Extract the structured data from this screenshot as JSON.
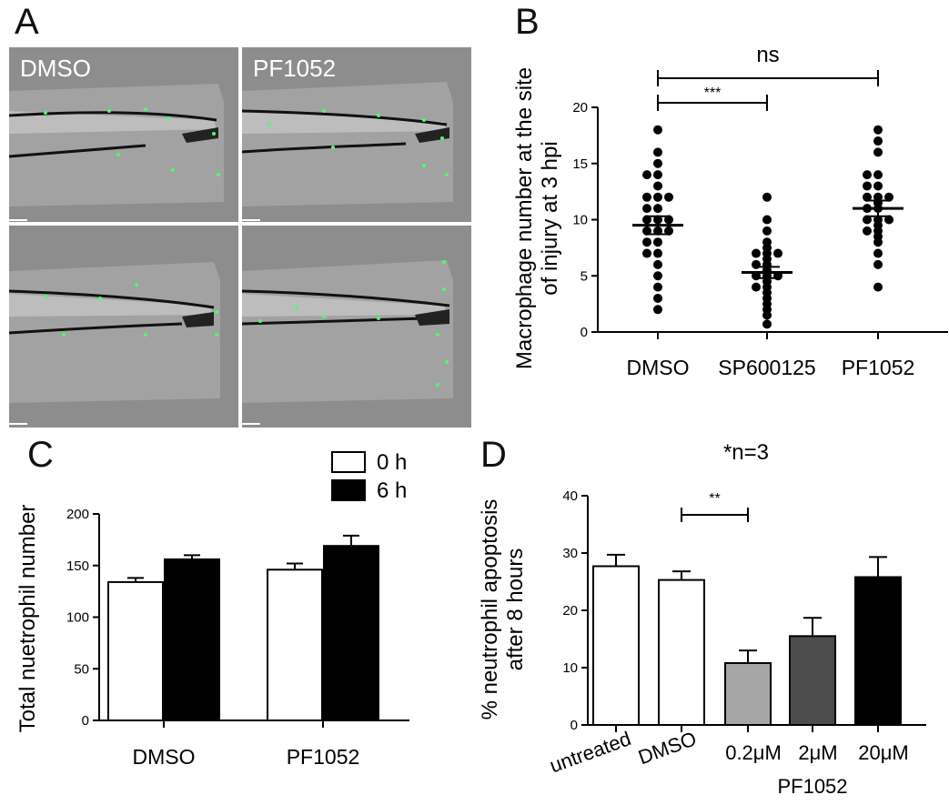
{
  "panels": {
    "a": {
      "letter": "A",
      "images": [
        {
          "label": "DMSO"
        },
        {
          "label": "PF1052"
        },
        {
          "label": ""
        },
        {
          "label": ""
        }
      ]
    },
    "b": {
      "letter": "B"
    },
    "c": {
      "letter": "C"
    },
    "d": {
      "letter": "D"
    }
  },
  "chart_data": [
    {
      "panel": "B",
      "type": "scatter",
      "categories": [
        "DMSO",
        "SP600125",
        "PF1052"
      ],
      "ylabel": "Macrophage number at the site of injury at 3 hpi",
      "ylim": [
        0,
        20
      ],
      "yticks": [
        0,
        5,
        10,
        15,
        20
      ],
      "series": [
        {
          "values": [
            2,
            3,
            4,
            5,
            6,
            7,
            7,
            8,
            8,
            9,
            9,
            9,
            10,
            10,
            10,
            11,
            11,
            12,
            12,
            12,
            13,
            14,
            14,
            15,
            16,
            18
          ]
        },
        {
          "values": [
            0.7,
            1.5,
            2,
            2.5,
            3,
            3.5,
            4,
            4,
            4.5,
            5,
            5,
            5,
            5.5,
            6,
            6,
            6.5,
            7,
            7,
            7,
            7.5,
            8,
            9,
            10,
            12
          ]
        },
        {
          "values": [
            4,
            6,
            7,
            8,
            8.5,
            9,
            9,
            9.5,
            10,
            10,
            10,
            11,
            11,
            11.5,
            12,
            12,
            12,
            13,
            13,
            14,
            14,
            16,
            17,
            18
          ]
        }
      ],
      "mean": [
        9.5,
        5.3,
        11.0
      ],
      "sem": [
        0.8,
        0.5,
        0.7
      ],
      "annotations": [
        {
          "text": "***",
          "from": "DMSO",
          "to": "SP600125"
        },
        {
          "text": "ns",
          "from": "DMSO",
          "to": "PF1052"
        }
      ]
    },
    {
      "panel": "C",
      "type": "bar",
      "categories": [
        "DMSO",
        "PF1052"
      ],
      "ylabel": "Total nuetrophil number",
      "ylim": [
        0,
        200
      ],
      "yticks": [
        0,
        50,
        100,
        150,
        200
      ],
      "legend": "top-right",
      "series": [
        {
          "name": "0 h",
          "color": "#ffffff",
          "values": [
            134,
            146
          ],
          "errors": [
            4,
            6
          ]
        },
        {
          "name": "6 h",
          "color": "#000000",
          "values": [
            156,
            169
          ],
          "errors": [
            4,
            10
          ]
        }
      ]
    },
    {
      "panel": "D",
      "type": "bar",
      "title": "*n=3",
      "categories": [
        "untreated",
        "DMSO",
        "0.2μM",
        "2μM",
        "20μM"
      ],
      "group_label": "PF1052",
      "ylabel": "% neutrophil apoptosis after 8 hours",
      "ylim": [
        0,
        40
      ],
      "yticks": [
        0,
        10,
        20,
        30,
        40
      ],
      "values": [
        27.7,
        25.3,
        10.8,
        15.5,
        25.8
      ],
      "errors": [
        2.0,
        1.5,
        2.2,
        3.2,
        3.5
      ],
      "colors": [
        "#ffffff",
        "#ffffff",
        "#a6a6a6",
        "#4d4d4d",
        "#000000"
      ],
      "annotations": [
        {
          "text": "**",
          "from": "DMSO",
          "to": "0.2μM"
        }
      ]
    }
  ]
}
